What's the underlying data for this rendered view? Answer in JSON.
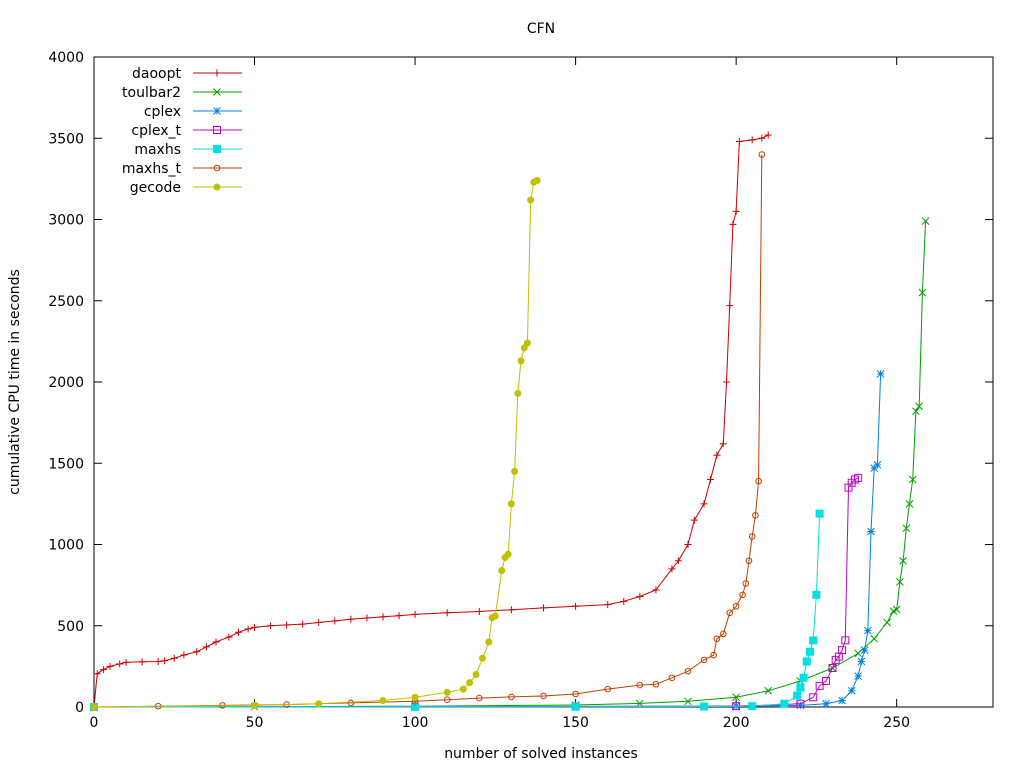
{
  "chart_data": {
    "type": "line",
    "title": "CFN",
    "xlabel": "number of solved instances",
    "ylabel": "cumulative CPU time in seconds",
    "xlim": [
      0,
      280
    ],
    "ylim": [
      0,
      4000
    ],
    "xticks": [
      0,
      50,
      100,
      150,
      200,
      250
    ],
    "yticks": [
      0,
      500,
      1000,
      1500,
      2000,
      2500,
      3000,
      3500,
      4000
    ],
    "xtick_labels": [
      "0",
      "50",
      "100",
      "150",
      "200",
      "250"
    ],
    "ytick_labels": [
      "0",
      "500",
      "1000",
      "1500",
      "2000",
      "2500",
      "3000",
      "3500",
      "4000"
    ],
    "grid": false,
    "legend_position": "top-left",
    "series": [
      {
        "name": "daoopt",
        "color": "#cc0000",
        "marker": "plus",
        "points": [
          [
            0,
            0
          ],
          [
            1,
            205
          ],
          [
            3,
            230
          ],
          [
            5,
            250
          ],
          [
            8,
            265
          ],
          [
            10,
            275
          ],
          [
            15,
            278
          ],
          [
            20,
            280
          ],
          [
            22,
            285
          ],
          [
            25,
            300
          ],
          [
            28,
            320
          ],
          [
            32,
            340
          ],
          [
            35,
            370
          ],
          [
            38,
            400
          ],
          [
            42,
            430
          ],
          [
            45,
            460
          ],
          [
            48,
            480
          ],
          [
            50,
            490
          ],
          [
            55,
            500
          ],
          [
            60,
            505
          ],
          [
            65,
            510
          ],
          [
            70,
            520
          ],
          [
            75,
            530
          ],
          [
            80,
            540
          ],
          [
            85,
            548
          ],
          [
            90,
            555
          ],
          [
            95,
            562
          ],
          [
            100,
            570
          ],
          [
            110,
            580
          ],
          [
            120,
            588
          ],
          [
            130,
            598
          ],
          [
            140,
            610
          ],
          [
            150,
            620
          ],
          [
            160,
            630
          ],
          [
            165,
            650
          ],
          [
            170,
            680
          ],
          [
            175,
            720
          ],
          [
            180,
            850
          ],
          [
            182,
            900
          ],
          [
            185,
            1000
          ],
          [
            187,
            1150
          ],
          [
            190,
            1250
          ],
          [
            192,
            1400
          ],
          [
            194,
            1550
          ],
          [
            196,
            1620
          ],
          [
            197,
            2000
          ],
          [
            198,
            2470
          ],
          [
            199,
            2970
          ],
          [
            200,
            3050
          ],
          [
            201,
            3480
          ],
          [
            205,
            3490
          ],
          [
            208,
            3500
          ],
          [
            210,
            3520
          ]
        ]
      },
      {
        "name": "toulbar2",
        "color": "#00a000",
        "marker": "x",
        "points": [
          [
            0,
            0
          ],
          [
            50,
            2
          ],
          [
            100,
            5
          ],
          [
            150,
            12
          ],
          [
            170,
            22
          ],
          [
            185,
            35
          ],
          [
            200,
            60
          ],
          [
            210,
            100
          ],
          [
            220,
            160
          ],
          [
            230,
            240
          ],
          [
            238,
            330
          ],
          [
            243,
            420
          ],
          [
            247,
            520
          ],
          [
            249,
            590
          ],
          [
            250,
            600
          ],
          [
            251,
            770
          ],
          [
            252,
            900
          ],
          [
            253,
            1100
          ],
          [
            254,
            1250
          ],
          [
            255,
            1400
          ],
          [
            256,
            1820
          ],
          [
            257,
            1850
          ],
          [
            258,
            2550
          ],
          [
            259,
            2990
          ]
        ]
      },
      {
        "name": "cplex",
        "color": "#0080e0",
        "marker": "asterisk",
        "points": [
          [
            0,
            0
          ],
          [
            100,
            2
          ],
          [
            150,
            4
          ],
          [
            200,
            6
          ],
          [
            220,
            10
          ],
          [
            228,
            20
          ],
          [
            233,
            40
          ],
          [
            236,
            100
          ],
          [
            238,
            190
          ],
          [
            239,
            280
          ],
          [
            240,
            350
          ],
          [
            241,
            470
          ],
          [
            242,
            1080
          ],
          [
            243,
            1470
          ],
          [
            244,
            1490
          ],
          [
            245,
            2050
          ]
        ]
      },
      {
        "name": "cplex_t",
        "color": "#c000c0",
        "marker": "square-open",
        "points": [
          [
            0,
            0
          ],
          [
            100,
            2
          ],
          [
            150,
            3
          ],
          [
            200,
            5
          ],
          [
            220,
            20
          ],
          [
            224,
            60
          ],
          [
            226,
            130
          ],
          [
            228,
            160
          ],
          [
            230,
            240
          ],
          [
            231,
            290
          ],
          [
            232,
            310
          ],
          [
            233,
            350
          ],
          [
            234,
            410
          ],
          [
            235,
            1350
          ],
          [
            236,
            1380
          ],
          [
            237,
            1400
          ],
          [
            238,
            1410
          ]
        ]
      },
      {
        "name": "maxhs",
        "color": "#00e0e0",
        "marker": "square-filled",
        "points": [
          [
            0,
            0
          ],
          [
            100,
            1
          ],
          [
            150,
            2
          ],
          [
            190,
            3
          ],
          [
            205,
            5
          ],
          [
            215,
            20
          ],
          [
            219,
            70
          ],
          [
            220,
            120
          ],
          [
            221,
            180
          ],
          [
            222,
            280
          ],
          [
            223,
            340
          ],
          [
            224,
            410
          ],
          [
            225,
            690
          ],
          [
            226,
            1190
          ]
        ]
      },
      {
        "name": "maxhs_t",
        "color": "#c04000",
        "marker": "circle-open",
        "points": [
          [
            0,
            0
          ],
          [
            20,
            5
          ],
          [
            40,
            10
          ],
          [
            60,
            15
          ],
          [
            80,
            25
          ],
          [
            100,
            35
          ],
          [
            110,
            45
          ],
          [
            120,
            55
          ],
          [
            130,
            62
          ],
          [
            140,
            68
          ],
          [
            150,
            80
          ],
          [
            160,
            110
          ],
          [
            170,
            135
          ],
          [
            175,
            140
          ],
          [
            180,
            180
          ],
          [
            185,
            220
          ],
          [
            190,
            290
          ],
          [
            193,
            320
          ],
          [
            194,
            420
          ],
          [
            196,
            450
          ],
          [
            198,
            580
          ],
          [
            200,
            620
          ],
          [
            202,
            690
          ],
          [
            203,
            760
          ],
          [
            204,
            900
          ],
          [
            205,
            1050
          ],
          [
            206,
            1180
          ],
          [
            207,
            1390
          ],
          [
            208,
            3400
          ]
        ]
      },
      {
        "name": "gecode",
        "color": "#c0c000",
        "marker": "circle-filled",
        "points": [
          [
            0,
            0
          ],
          [
            50,
            10
          ],
          [
            70,
            20
          ],
          [
            90,
            40
          ],
          [
            100,
            60
          ],
          [
            110,
            90
          ],
          [
            115,
            110
          ],
          [
            117,
            150
          ],
          [
            119,
            200
          ],
          [
            121,
            300
          ],
          [
            123,
            400
          ],
          [
            124,
            550
          ],
          [
            125,
            560
          ],
          [
            127,
            840
          ],
          [
            128,
            920
          ],
          [
            129,
            940
          ],
          [
            130,
            1250
          ],
          [
            131,
            1450
          ],
          [
            132,
            1930
          ],
          [
            133,
            2130
          ],
          [
            134,
            2210
          ],
          [
            135,
            2240
          ],
          [
            136,
            3120
          ],
          [
            137,
            3230
          ],
          [
            138,
            3240
          ]
        ]
      }
    ]
  }
}
